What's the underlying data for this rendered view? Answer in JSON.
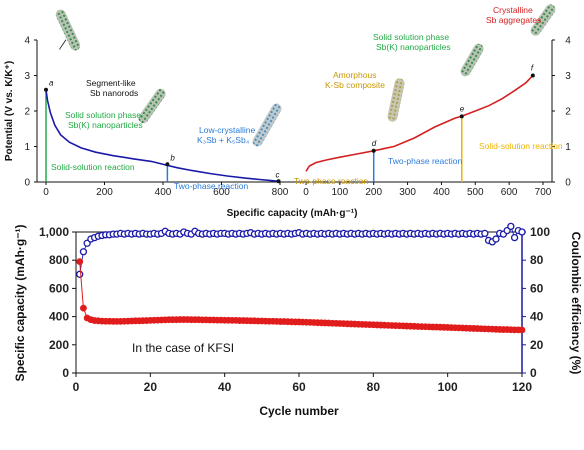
{
  "chart_data": [
    {
      "type": "line",
      "panel": "top",
      "xlabel": "Specific capacity (mAh·g⁻¹)",
      "ylabel": "Potential (V vs. K/K⁺)",
      "left": {
        "xlim": [
          0,
          800
        ],
        "ylim": [
          0,
          4
        ],
        "x_ticks": [
          "0",
          "200",
          "400",
          "600",
          "800"
        ],
        "y_ticks": [
          "0",
          "1",
          "2",
          "3",
          "4"
        ],
        "series": [
          {
            "color": "#1a1aa8",
            "x": [
              0,
              5,
              15,
              30,
              50,
              80,
              120,
              170,
              230,
              300,
              360,
              410,
              450,
              500,
              560,
              620,
              680,
              730,
              770,
              795
            ],
            "y": [
              2.6,
              2.3,
              1.95,
              1.6,
              1.33,
              1.12,
              0.96,
              0.84,
              0.74,
              0.65,
              0.58,
              0.48,
              0.4,
              0.32,
              0.24,
              0.17,
              0.11,
              0.07,
              0.04,
              0.02
            ]
          }
        ],
        "points": [
          {
            "label": "a",
            "x": 0,
            "y": 2.6
          },
          {
            "label": "b",
            "x": 415,
            "y": 0.5
          },
          {
            "label": "c",
            "x": 795,
            "y": 0.02
          }
        ],
        "markers": [
          {
            "x": 0,
            "color": "#22aa44"
          },
          {
            "x": 415,
            "color": "#2b7bd9"
          }
        ],
        "annotations": [
          {
            "id": "segment-like",
            "line1": "Segment-like",
            "line2": "Sb nanorods",
            "color": "#111111"
          },
          {
            "id": "solid-solution-phase",
            "line1": "Solid solution phase",
            "line2": "Sb(K) nanoparticles",
            "color": "#22aa44"
          },
          {
            "id": "low-crystalline",
            "line1": "Low-crystalline",
            "line2": "K₃Sb + K₅Sb₄",
            "color": "#2b7bd9"
          },
          {
            "id": "solid-solution-reaction",
            "line1": "Solid-solution reaction",
            "line2": "",
            "color": "#22aa44"
          },
          {
            "id": "two-phase-reaction",
            "line1": "Two-phase reaction",
            "line2": "",
            "color": "#2b7bd9"
          }
        ]
      },
      "right": {
        "xlim": [
          0,
          700
        ],
        "ylim": [
          0,
          4
        ],
        "x_ticks": [
          "0",
          "100",
          "200",
          "300",
          "400",
          "500",
          "600",
          "700"
        ],
        "y_ticks": [
          "0",
          "1",
          "2",
          "3",
          "4"
        ],
        "series": [
          {
            "color": "#d42020",
            "x": [
              0,
              10,
              30,
              60,
              100,
              150,
              200,
              260,
              320,
              380,
              440,
              460,
              500,
              540,
              580,
              620,
              650,
              670
            ],
            "y": [
              0.3,
              0.45,
              0.55,
              0.62,
              0.7,
              0.79,
              0.88,
              1.0,
              1.24,
              1.55,
              1.8,
              1.85,
              2.0,
              2.15,
              2.35,
              2.6,
              2.8,
              3.0
            ]
          }
        ],
        "points": [
          {
            "label": "d",
            "x": 200,
            "y": 0.88
          },
          {
            "label": "e",
            "x": 460,
            "y": 1.85
          },
          {
            "label": "f",
            "x": 670,
            "y": 3.0
          }
        ],
        "markers": [
          {
            "x": 200,
            "color": "#2b7bd9"
          },
          {
            "x": 460,
            "color": "#f0b400"
          }
        ],
        "annotations": [
          {
            "id": "crystalline",
            "line1": "Crystalline",
            "line2": "Sb aggregates",
            "color": "#d42020"
          },
          {
            "id": "solid-solution-phase-2",
            "line1": "Solid solution phase",
            "line2": "Sb(K) nanoparticles",
            "color": "#22aa44"
          },
          {
            "id": "amorphous",
            "line1": "Amorphous",
            "line2": "K-Sb composite",
            "color": "#c89600"
          },
          {
            "id": "two-phase-reaction-2",
            "line1": "Two-phase reaction",
            "line2": "",
            "color": "#2b7bd9"
          },
          {
            "id": "two-phase-reaction-3",
            "line1": "Two-phase reaction",
            "line2": "",
            "color": "#c89600"
          },
          {
            "id": "solid-solution-reaction-2",
            "line1": "Solid-solution reaction",
            "line2": "",
            "color": "#f0b400"
          }
        ]
      }
    },
    {
      "type": "scatter",
      "panel": "bottom",
      "xlabel": "Cycle number",
      "ylabel": "Specific capacity (mAh·g⁻¹)",
      "y2label": "Coulombic efficiency (%)",
      "xlim": [
        0,
        120
      ],
      "ylim": [
        0,
        1000
      ],
      "y2lim": [
        0,
        100
      ],
      "x_ticks": [
        "0",
        "20",
        "40",
        "60",
        "80",
        "100",
        "120"
      ],
      "y_ticks": [
        "0",
        "200",
        "400",
        "600",
        "800",
        "1,000"
      ],
      "y2_ticks": [
        "0",
        "20",
        "40",
        "60",
        "80",
        "100"
      ],
      "inset_text": "In the case of KFSI",
      "capacity_color": "#e01c1c",
      "ce_color": "#1a1aaa",
      "capacity": {
        "x": [
          1,
          2,
          3,
          4,
          5,
          6,
          7,
          8,
          9,
          10,
          11,
          12,
          13,
          14,
          15,
          16,
          17,
          18,
          19,
          20,
          21,
          22,
          23,
          24,
          25,
          26,
          27,
          28,
          29,
          30,
          31,
          32,
          33,
          34,
          35,
          36,
          37,
          38,
          39,
          40,
          41,
          42,
          43,
          44,
          45,
          46,
          47,
          48,
          49,
          50,
          51,
          52,
          53,
          54,
          55,
          56,
          57,
          58,
          59,
          60,
          61,
          62,
          63,
          64,
          65,
          66,
          67,
          68,
          69,
          70,
          71,
          72,
          73,
          74,
          75,
          76,
          77,
          78,
          79,
          80,
          81,
          82,
          83,
          84,
          85,
          86,
          87,
          88,
          89,
          90,
          91,
          92,
          93,
          94,
          95,
          96,
          97,
          98,
          99,
          100,
          101,
          102,
          103,
          104,
          105,
          106,
          107,
          108,
          109,
          110,
          111,
          112,
          113,
          114,
          115,
          116,
          117,
          118,
          119,
          120
        ],
        "y": [
          790,
          460,
          390,
          378,
          372,
          370,
          368,
          367,
          367,
          366,
          366,
          366,
          367,
          368,
          369,
          370,
          370,
          371,
          372,
          373,
          374,
          375,
          376,
          377,
          378,
          378,
          378,
          379,
          379,
          379,
          378,
          378,
          378,
          377,
          377,
          376,
          376,
          375,
          375,
          374,
          374,
          373,
          373,
          372,
          372,
          371,
          370,
          370,
          369,
          369,
          368,
          367,
          367,
          366,
          365,
          365,
          364,
          363,
          362,
          362,
          361,
          360,
          359,
          358,
          357,
          356,
          355,
          354,
          353,
          352,
          351,
          350,
          349,
          348,
          347,
          346,
          345,
          344,
          343,
          342,
          341,
          340,
          339,
          338,
          337,
          336,
          335,
          334,
          333,
          332,
          331,
          330,
          329,
          328,
          327,
          326,
          326,
          325,
          324,
          323,
          322,
          321,
          320,
          319,
          318,
          317,
          316,
          315,
          314,
          313,
          312,
          311,
          310,
          309,
          308,
          308,
          307,
          306,
          306,
          305
        ]
      },
      "coulombic_efficiency": {
        "x": [
          1,
          2,
          3,
          4,
          5,
          6,
          7,
          8,
          9,
          10,
          11,
          12,
          13,
          14,
          15,
          16,
          17,
          18,
          19,
          20,
          21,
          22,
          23,
          24,
          25,
          26,
          27,
          28,
          29,
          30,
          31,
          32,
          33,
          34,
          35,
          36,
          37,
          38,
          39,
          40,
          41,
          42,
          43,
          44,
          45,
          46,
          47,
          48,
          49,
          50,
          51,
          52,
          53,
          54,
          55,
          56,
          57,
          58,
          59,
          60,
          61,
          62,
          63,
          64,
          65,
          66,
          67,
          68,
          69,
          70,
          71,
          72,
          73,
          74,
          75,
          76,
          77,
          78,
          79,
          80,
          81,
          82,
          83,
          84,
          85,
          86,
          87,
          88,
          89,
          90,
          91,
          92,
          93,
          94,
          95,
          96,
          97,
          98,
          99,
          100,
          101,
          102,
          103,
          104,
          105,
          106,
          107,
          108,
          109,
          110,
          111,
          112,
          113,
          114,
          115,
          116,
          117,
          118,
          119,
          120
        ],
        "y": [
          70,
          86,
          92,
          95,
          96,
          97,
          97.5,
          98,
          98,
          98.5,
          98.5,
          99,
          98.5,
          99,
          98.5,
          99,
          98.5,
          99,
          98.5,
          98.5,
          99,
          98.5,
          99,
          100.5,
          99,
          98.5,
          99,
          98.5,
          100,
          99,
          98.5,
          100.5,
          99,
          98.5,
          99,
          98.5,
          99,
          98.5,
          99,
          99,
          98.5,
          99,
          98.5,
          99,
          98.5,
          99,
          99.5,
          98.5,
          99,
          98.5,
          99,
          98.5,
          99,
          98.5,
          99,
          98.5,
          99,
          98.5,
          99,
          99.5,
          98.5,
          99,
          98.5,
          99,
          98.5,
          99,
          98.5,
          99,
          98.5,
          99,
          98.5,
          99,
          98.5,
          99,
          98.5,
          99,
          98.5,
          99,
          98.5,
          99,
          98.5,
          99,
          98.5,
          99,
          98.5,
          99,
          98.5,
          99,
          98.5,
          99,
          98.5,
          99,
          98.5,
          99,
          98.5,
          99,
          98.5,
          99,
          98.5,
          99,
          98.5,
          99,
          98.5,
          99,
          98.5,
          99,
          98.5,
          99,
          98.5,
          99,
          94,
          93,
          95,
          99,
          98.5,
          101,
          104,
          96,
          101,
          100
        ]
      }
    }
  ]
}
